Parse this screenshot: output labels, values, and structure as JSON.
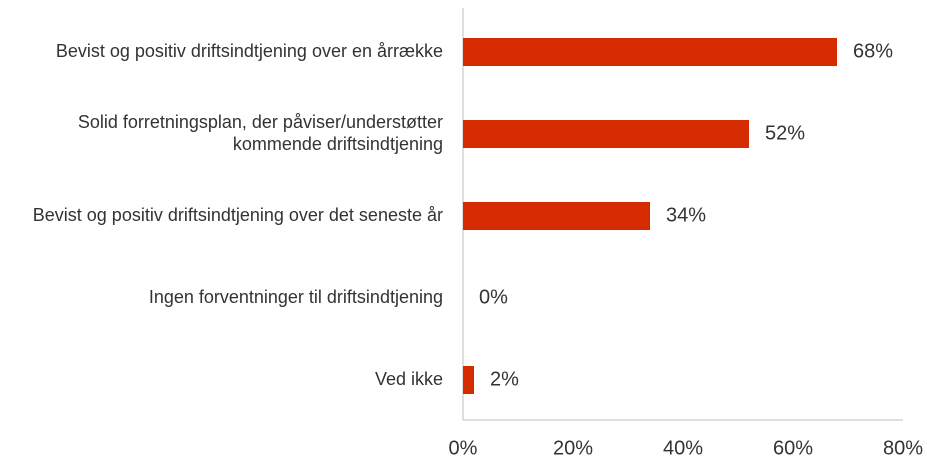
{
  "chart_data": {
    "type": "hbar",
    "categories": [
      "Bevist og positiv driftsindtjening over en årrække",
      "Solid forretningsplan, der påviser/understøtter kommende driftsindtjening",
      "Bevist og positiv driftsindtjening over det seneste år",
      "Ingen forventninger til driftsindtjening",
      "Ved ikke"
    ],
    "values": [
      68,
      52,
      34,
      0,
      2
    ],
    "value_labels": [
      "68%",
      "52%",
      "34%",
      "0%",
      "2%"
    ],
    "color": "#d52b00",
    "xlim": [
      0,
      80
    ],
    "xticks": [
      {
        "value": 0,
        "label": "0%"
      },
      {
        "value": 20,
        "label": "20%"
      },
      {
        "value": 40,
        "label": "40%"
      },
      {
        "value": 60,
        "label": "60%"
      },
      {
        "value": 80,
        "label": "80%"
      }
    ],
    "grid": false
  }
}
